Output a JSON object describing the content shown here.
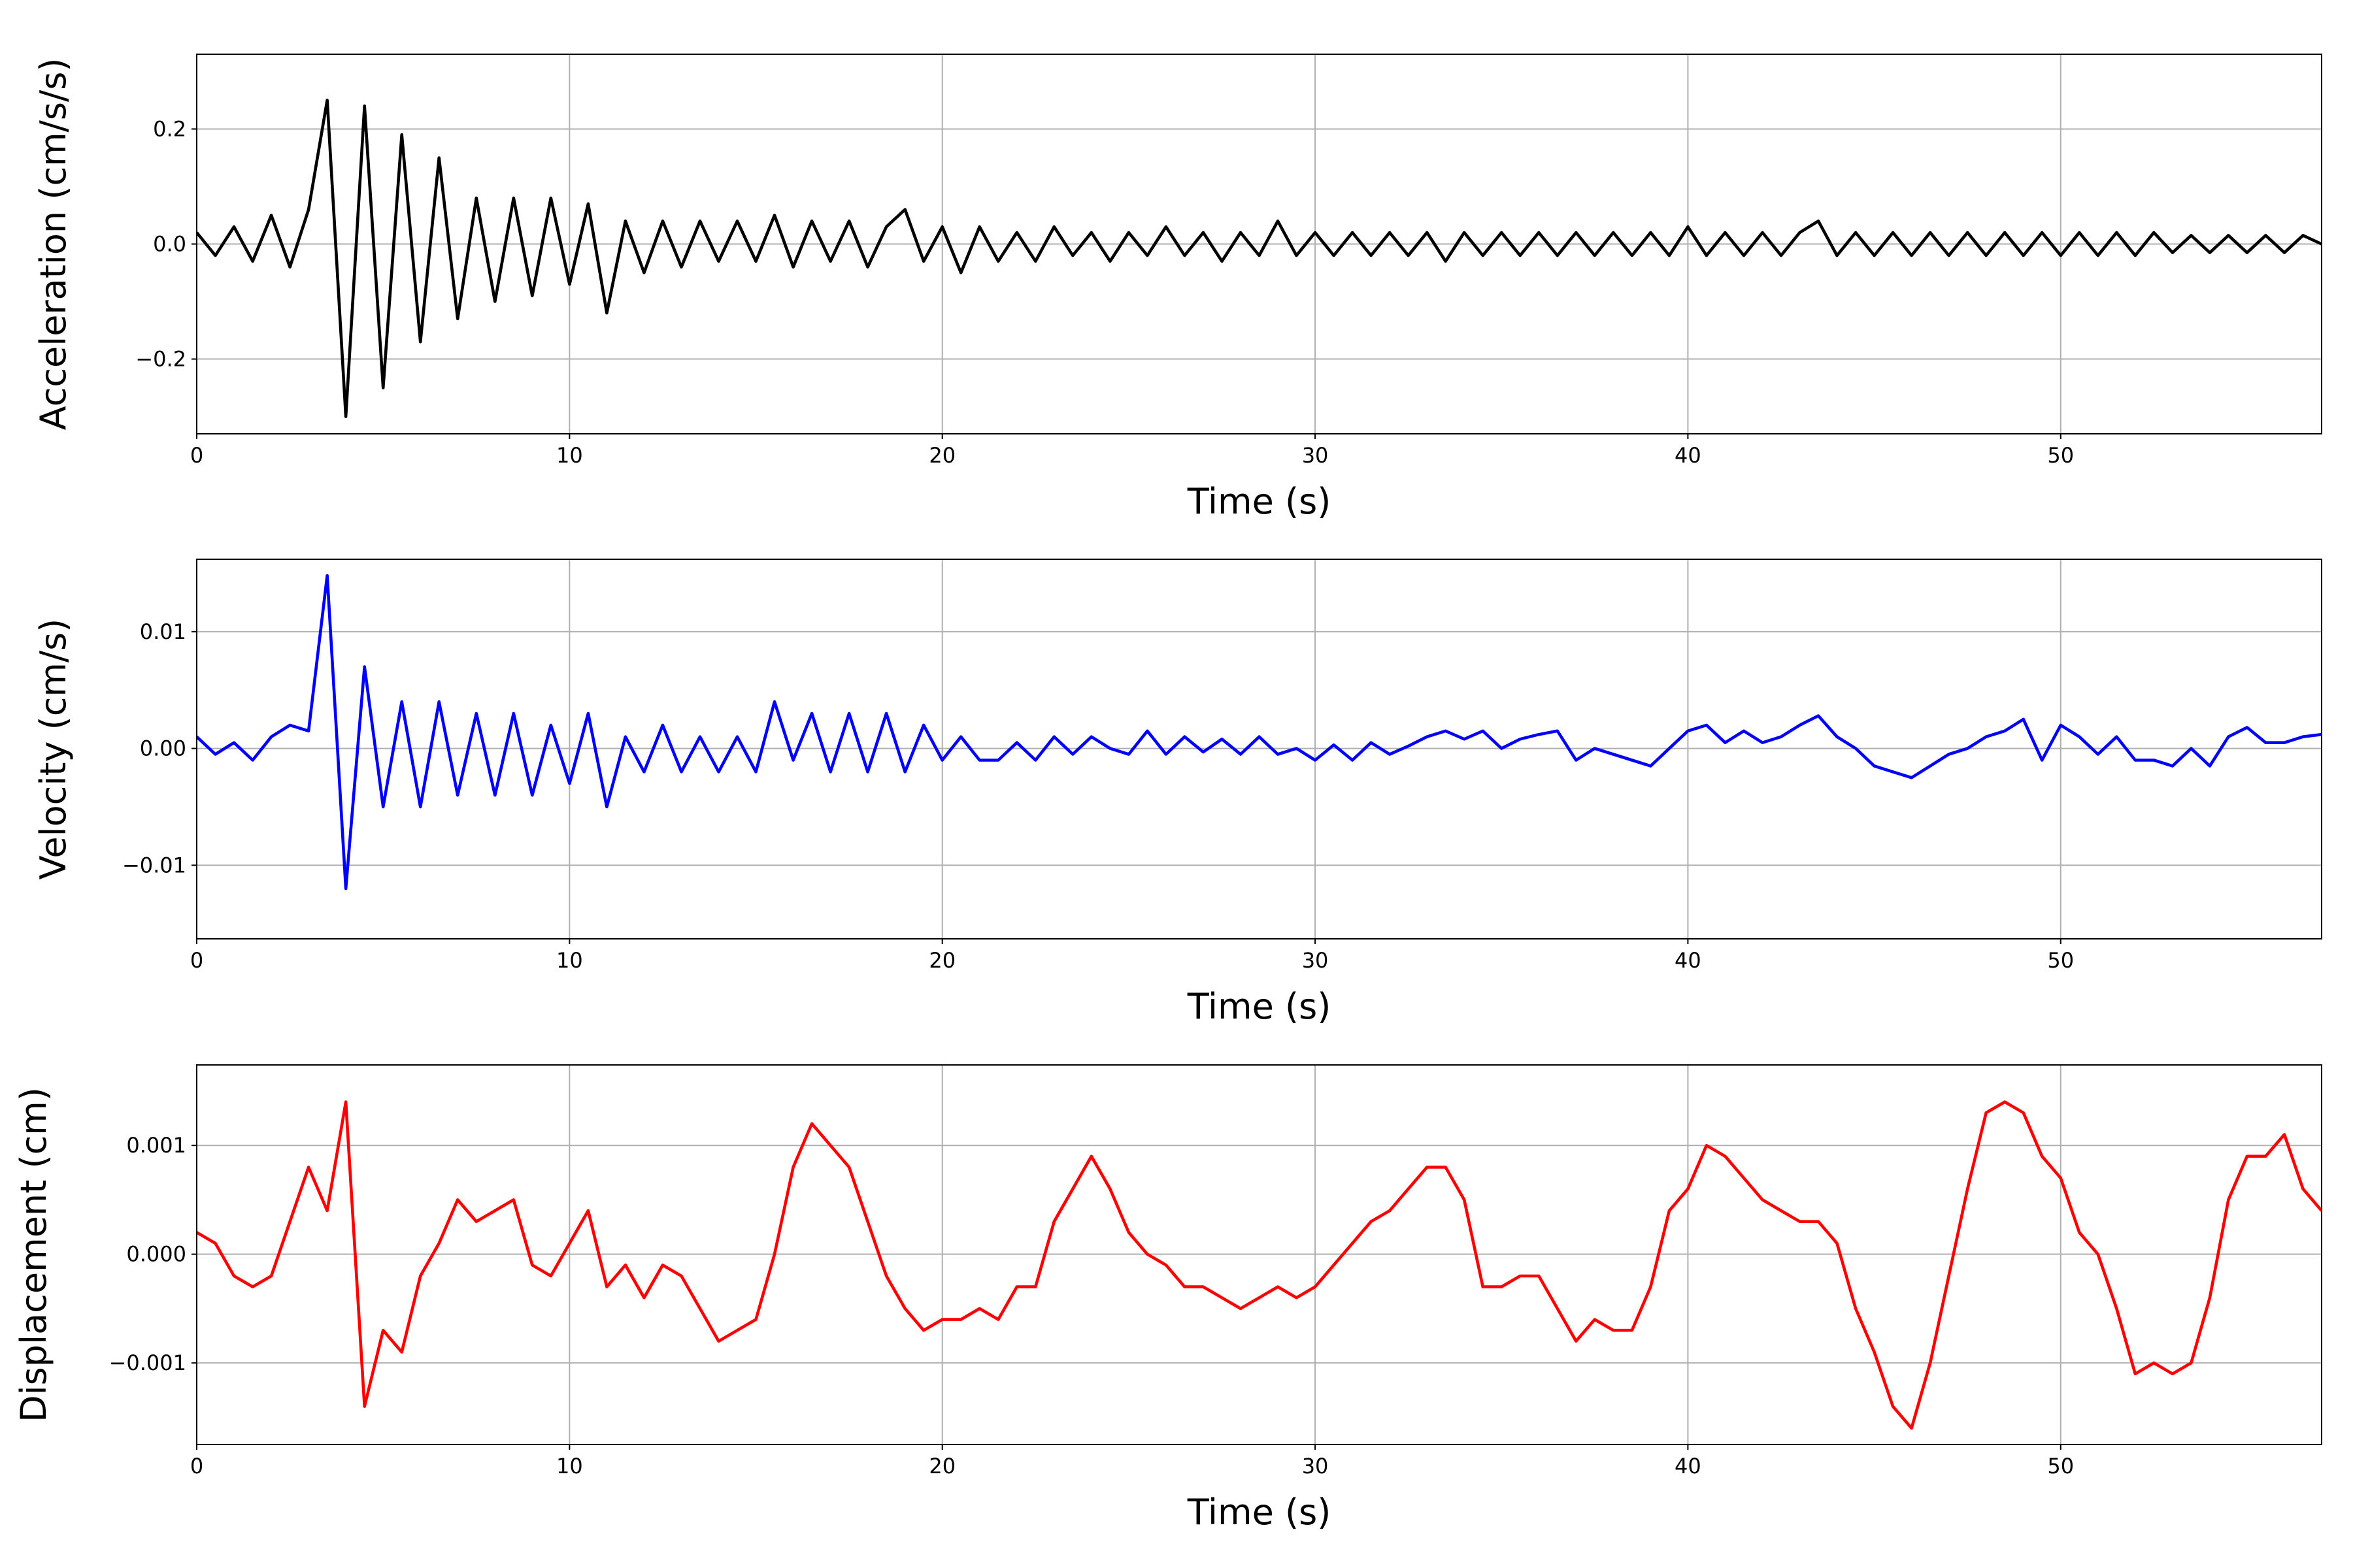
{
  "chart_data": [
    {
      "type": "line",
      "xlabel": "Time (s)",
      "ylabel": "Acceleration (cm/s/s)",
      "color": "#000000",
      "grid": true,
      "xlim": [
        0,
        57
      ],
      "ylim": [
        -0.33,
        0.33
      ],
      "xticks": [
        0,
        10,
        20,
        30,
        40,
        50
      ],
      "yticks": [
        {
          "value": -0.2,
          "label": "−0.2"
        },
        {
          "value": 0,
          "label": "0.0"
        },
        0.2
      ],
      "x": [
        0,
        0.5,
        1,
        1.5,
        2,
        2.5,
        3,
        3.5,
        4,
        4.5,
        5,
        5.5,
        6,
        6.5,
        7,
        7.5,
        8,
        8.5,
        9,
        9.5,
        10,
        10.5,
        11,
        11.5,
        12,
        12.5,
        13,
        13.5,
        14,
        14.5,
        15,
        15.5,
        16,
        16.5,
        17,
        17.5,
        18,
        18.5,
        19,
        19.5,
        20,
        20.5,
        21,
        21.5,
        22,
        22.5,
        23,
        23.5,
        24,
        24.5,
        25,
        25.5,
        26,
        26.5,
        27,
        27.5,
        28,
        28.5,
        29,
        29.5,
        30,
        30.5,
        31,
        31.5,
        32,
        32.5,
        33,
        33.5,
        34,
        34.5,
        35,
        35.5,
        36,
        36.5,
        37,
        37.5,
        38,
        38.5,
        39,
        39.5,
        40,
        40.5,
        41,
        41.5,
        42,
        42.5,
        43,
        43.5,
        44,
        44.5,
        45,
        45.5,
        46,
        46.5,
        47,
        47.5,
        48,
        48.5,
        49,
        49.5,
        50,
        50.5,
        51,
        51.5,
        52,
        52.5,
        53,
        53.5,
        54,
        54.5,
        55,
        55.5,
        56,
        56.5,
        57
      ],
      "values": [
        0.02,
        -0.02,
        0.03,
        -0.03,
        0.05,
        -0.04,
        0.06,
        0.25,
        -0.3,
        0.24,
        -0.25,
        0.19,
        -0.17,
        0.15,
        -0.13,
        0.08,
        -0.1,
        0.08,
        -0.09,
        0.08,
        -0.07,
        0.07,
        -0.12,
        0.04,
        -0.05,
        0.04,
        -0.04,
        0.04,
        -0.03,
        0.04,
        -0.03,
        0.05,
        -0.04,
        0.04,
        -0.03,
        0.04,
        -0.04,
        0.03,
        0.06,
        -0.03,
        0.03,
        -0.05,
        0.03,
        -0.03,
        0.02,
        -0.03,
        0.03,
        -0.02,
        0.02,
        -0.03,
        0.02,
        -0.02,
        0.03,
        -0.02,
        0.02,
        -0.03,
        0.02,
        -0.02,
        0.04,
        -0.02,
        0.02,
        -0.02,
        0.02,
        -0.02,
        0.02,
        -0.02,
        0.02,
        -0.03,
        0.02,
        -0.02,
        0.02,
        -0.02,
        0.02,
        -0.02,
        0.02,
        -0.02,
        0.02,
        -0.02,
        0.02,
        -0.02,
        0.03,
        -0.02,
        0.02,
        -0.02,
        0.02,
        -0.02,
        0.02,
        0.04,
        -0.02,
        0.02,
        -0.02,
        0.02,
        -0.02,
        0.02,
        -0.02,
        0.02,
        -0.02,
        0.02,
        -0.02,
        0.02,
        -0.02,
        0.02,
        -0.02,
        0.02,
        -0.02,
        0.02,
        -0.015,
        0.015,
        -0.015,
        0.015,
        -0.015,
        0.015,
        -0.015,
        0.015,
        0
      ]
    },
    {
      "type": "line",
      "xlabel": "Time (s)",
      "ylabel": "Velocity (cm/s)",
      "color": "#0000ff",
      "grid": true,
      "xlim": [
        0,
        57
      ],
      "ylim": [
        -0.0163,
        0.0162
      ],
      "xticks": [
        0,
        10,
        20,
        30,
        40,
        50
      ],
      "yticks": [
        {
          "value": -0.01,
          "label": "−0.01"
        },
        {
          "value": 0,
          "label": "0.00"
        },
        0.01
      ],
      "x": [
        0,
        0.5,
        1,
        1.5,
        2,
        2.5,
        3,
        3.5,
        4,
        4.5,
        5,
        5.5,
        6,
        6.5,
        7,
        7.5,
        8,
        8.5,
        9,
        9.5,
        10,
        10.5,
        11,
        11.5,
        12,
        12.5,
        13,
        13.5,
        14,
        14.5,
        15,
        15.5,
        16,
        16.5,
        17,
        17.5,
        18,
        18.5,
        19,
        19.5,
        20,
        20.5,
        21,
        21.5,
        22,
        22.5,
        23,
        23.5,
        24,
        24.5,
        25,
        25.5,
        26,
        26.5,
        27,
        27.5,
        28,
        28.5,
        29,
        29.5,
        30,
        30.5,
        31,
        31.5,
        32,
        32.5,
        33,
        33.5,
        34,
        34.5,
        35,
        35.5,
        36,
        36.5,
        37,
        37.5,
        38,
        38.5,
        39,
        39.5,
        40,
        40.5,
        41,
        41.5,
        42,
        42.5,
        43,
        43.5,
        44,
        44.5,
        45,
        45.5,
        46,
        46.5,
        47,
        47.5,
        48,
        48.5,
        49,
        49.5,
        50,
        50.5,
        51,
        51.5,
        52,
        52.5,
        53,
        53.5,
        54,
        54.5,
        55,
        55.5,
        56,
        56.5,
        57
      ],
      "values": [
        0.001,
        -0.0005,
        0.0005,
        -0.001,
        0.001,
        0.002,
        0.0015,
        0.0148,
        -0.012,
        0.007,
        -0.005,
        0.004,
        -0.005,
        0.004,
        -0.004,
        0.003,
        -0.004,
        0.003,
        -0.004,
        0.002,
        -0.003,
        0.003,
        -0.005,
        0.001,
        -0.002,
        0.002,
        -0.002,
        0.001,
        -0.002,
        0.001,
        -0.002,
        0.004,
        -0.001,
        0.003,
        -0.002,
        0.003,
        -0.002,
        0.003,
        -0.002,
        0.002,
        -0.001,
        0.001,
        -0.001,
        -0.001,
        0.0005,
        -0.001,
        0.001,
        -0.0005,
        0.001,
        0,
        -0.0005,
        0.0015,
        -0.0005,
        0.001,
        -0.0003,
        0.0008,
        -0.0005,
        0.001,
        -0.0005,
        0,
        -0.001,
        0.0003,
        -0.001,
        0.0005,
        -0.0005,
        0.0002,
        0.001,
        0.0015,
        0.0008,
        0.0015,
        0,
        0.0008,
        0.0012,
        0.0015,
        -0.001,
        0,
        -0.0005,
        -0.001,
        -0.0015,
        0,
        0.0015,
        0.002,
        0.0005,
        0.0015,
        0.0005,
        0.001,
        0.002,
        0.0028,
        0.001,
        0,
        -0.0015,
        -0.002,
        -0.0025,
        -0.0015,
        -0.0005,
        0,
        0.001,
        0.0015,
        0.0025,
        -0.001,
        0.002,
        0.001,
        -0.0005,
        0.001,
        -0.001,
        -0.001,
        -0.0015,
        0,
        -0.0015,
        0.001,
        0.0018,
        0.0005,
        0.0005,
        0.001,
        0.0012
      ]
    },
    {
      "type": "line",
      "xlabel": "Time (s)",
      "ylabel": "Displacement (cm)",
      "color": "#ff0000",
      "grid": true,
      "xlim": [
        0,
        57
      ],
      "ylim": [
        -0.00175,
        0.00174
      ],
      "xticks": [
        0,
        10,
        20,
        30,
        40,
        50
      ],
      "yticks": [
        {
          "value": -0.001,
          "label": "−0.001"
        },
        {
          "value": 0,
          "label": "0.000"
        },
        0.001
      ],
      "x": [
        0,
        0.5,
        1,
        1.5,
        2,
        2.5,
        3,
        3.5,
        4,
        4.5,
        5,
        5.5,
        6,
        6.5,
        7,
        7.5,
        8,
        8.5,
        9,
        9.5,
        10,
        10.5,
        11,
        11.5,
        12,
        12.5,
        13,
        13.5,
        14,
        14.5,
        15,
        15.5,
        16,
        16.5,
        17,
        17.5,
        18,
        18.5,
        19,
        19.5,
        20,
        20.5,
        21,
        21.5,
        22,
        22.5,
        23,
        23.5,
        24,
        24.5,
        25,
        25.5,
        26,
        26.5,
        27,
        27.5,
        28,
        28.5,
        29,
        29.5,
        30,
        30.5,
        31,
        31.5,
        32,
        32.5,
        33,
        33.5,
        34,
        34.5,
        35,
        35.5,
        36,
        36.5,
        37,
        37.5,
        38,
        38.5,
        39,
        39.5,
        40,
        40.5,
        41,
        41.5,
        42,
        42.5,
        43,
        43.5,
        44,
        44.5,
        45,
        45.5,
        46,
        46.5,
        47,
        47.5,
        48,
        48.5,
        49,
        49.5,
        50,
        50.5,
        51,
        51.5,
        52,
        52.5,
        53,
        53.5,
        54,
        54.5,
        55,
        55.5,
        56,
        56.5,
        57
      ],
      "values": [
        0.0002,
        0.0001,
        -0.0002,
        -0.0003,
        -0.0002,
        0.0003,
        0.0008,
        0.0004,
        0.0014,
        -0.0014,
        -0.0007,
        -0.0009,
        -0.0002,
        0.0001,
        0.0005,
        0.0003,
        0.0004,
        0.0005,
        -0.0001,
        -0.0002,
        0.0001,
        0.0004,
        -0.0003,
        -0.0001,
        -0.0004,
        -0.0001,
        -0.0002,
        -0.0005,
        -0.0008,
        -0.0007,
        -0.0006,
        0,
        0.0008,
        0.0012,
        0.001,
        0.0008,
        0.0003,
        -0.0002,
        -0.0005,
        -0.0007,
        -0.0006,
        -0.0006,
        -0.0005,
        -0.0006,
        -0.0003,
        -0.0003,
        0.0003,
        0.0006,
        0.0009,
        0.0006,
        0.0002,
        0,
        -0.0001,
        -0.0003,
        -0.0003,
        -0.0004,
        -0.0005,
        -0.0004,
        -0.0003,
        -0.0004,
        -0.0003,
        -0.0001,
        0.0001,
        0.0003,
        0.0004,
        0.0006,
        0.0008,
        0.0008,
        0.0005,
        -0.0003,
        -0.0003,
        -0.0002,
        -0.0002,
        -0.0005,
        -0.0008,
        -0.0006,
        -0.0007,
        -0.0007,
        -0.0003,
        0.0004,
        0.0006,
        0.001,
        0.0009,
        0.0007,
        0.0005,
        0.0004,
        0.0003,
        0.0003,
        0.0001,
        -0.0005,
        -0.0009,
        -0.0014,
        -0.0016,
        -0.001,
        -0.0002,
        0.0006,
        0.0013,
        0.0014,
        0.0013,
        0.0009,
        0.0007,
        0.0002,
        0,
        -0.0005,
        -0.0011,
        -0.001,
        -0.0011,
        -0.001,
        -0.0004,
        0.0005,
        0.0009,
        0.0009,
        0.0011,
        0.0006,
        0.0004
      ]
    }
  ]
}
